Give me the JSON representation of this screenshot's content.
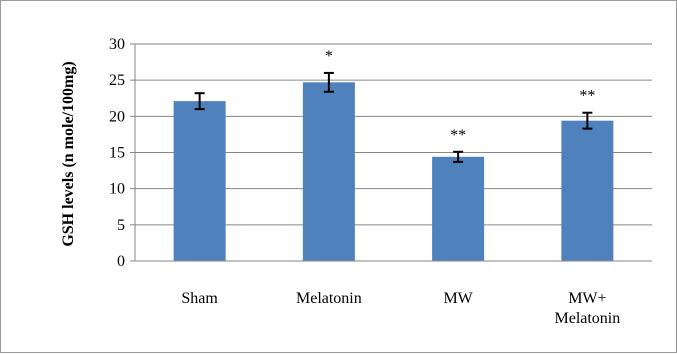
{
  "chart_data": {
    "type": "bar",
    "title": "",
    "xlabel": "",
    "ylabel": "GSH levels (n mole/100mg)",
    "categories": [
      "Sham",
      "Melatonin",
      "MW",
      "MW+\nMelatonin"
    ],
    "series": [
      {
        "values": [
          22.1,
          24.7,
          14.4,
          19.4
        ],
        "errors": [
          1.1,
          1.3,
          0.7,
          1.1
        ],
        "significance": [
          "",
          "*",
          "**",
          "**"
        ]
      }
    ],
    "ylim": [
      0,
      30
    ],
    "yticks": [
      0,
      5,
      10,
      15,
      20,
      25,
      30
    ],
    "grid": true,
    "legend": "none",
    "colors": {
      "bar": "#4f81bd",
      "grid": "#868686",
      "axis": "#868686",
      "error": "#000000"
    }
  }
}
